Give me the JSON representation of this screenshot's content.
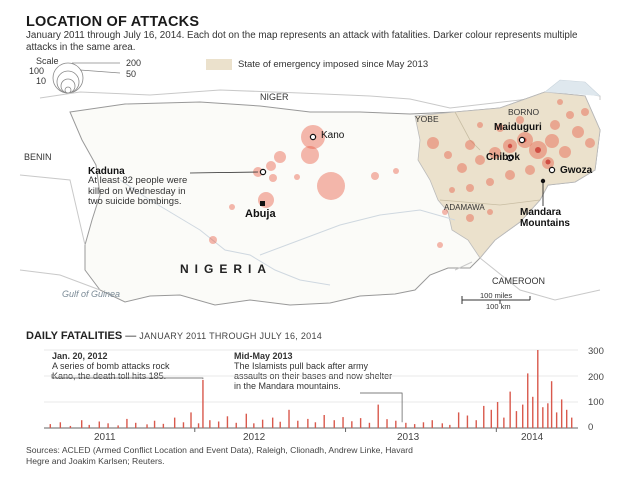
{
  "header": {
    "title": "LOCATION OF ATTACKS",
    "subtitle": "January 2011 through July 16, 2014. Each dot on the map represents an attack with fatalities. Darker colour represents multiple attacks in the same area."
  },
  "legend": {
    "scale_label": "Scale",
    "scale_values": [
      "200",
      "100",
      "50",
      "10"
    ],
    "state_of_emergency": "State of emergency imposed since May 2013"
  },
  "map": {
    "countries": {
      "niger": "NIGER",
      "benin": "BENIN",
      "cameroon": "CAMEROON",
      "nigeria": "NIGERIA",
      "gulf": "Gulf of Guinea"
    },
    "states": {
      "yobe": "YOBE",
      "borno": "BORNO",
      "adamawa": "ADAMAWA"
    },
    "cities": {
      "kano": "Kano",
      "maiduguri": "Maiduguri",
      "chibok": "Chibok",
      "gwoza": "Gwoza",
      "abuja": "Abuja",
      "kaduna": "Kaduna",
      "mandara": "Mandara Mountains"
    },
    "kaduna_note": "At least 82 people were killed on Wednesday in two suicide bombings.",
    "scale_bar": {
      "miles": "100 miles",
      "km": "100 km"
    }
  },
  "chart_data": {
    "type": "bar",
    "title": "DAILY FATALITIES",
    "subtitle": "JANUARY 2011 THROUGH JULY 16, 2014",
    "x_ticks": [
      "2011",
      "2012",
      "2013",
      "2014"
    ],
    "y_ticks": [
      "300",
      "200",
      "100",
      "0"
    ],
    "ylim": [
      0,
      300
    ],
    "x_range_months": [
      0,
      42.5
    ],
    "annotations": [
      {
        "date_label": "Jan. 20, 2012",
        "text": "A series of bomb attacks rock Kano, the death toll hits 185.",
        "month": 12.65,
        "value": 185
      },
      {
        "date_label": "Mid-May 2013",
        "text": "The Islamists pull back after army assaults on their bases and now shelter in the Mandara mountains.",
        "month": 28.5,
        "value": 30
      }
    ],
    "series": [
      {
        "name": "Daily fatalities",
        "month": [
          0.5,
          1.3,
          2.1,
          3.0,
          3.6,
          4.4,
          5.1,
          5.9,
          6.6,
          7.3,
          8.2,
          8.8,
          9.5,
          10.4,
          11.1,
          11.7,
          12.3,
          12.65,
          13.2,
          13.9,
          14.6,
          15.3,
          16.1,
          16.7,
          17.4,
          18.2,
          18.8,
          19.5,
          20.2,
          21.0,
          21.6,
          22.3,
          23.1,
          23.8,
          24.5,
          25.2,
          25.9,
          26.6,
          27.3,
          28.0,
          28.8,
          29.5,
          30.2,
          30.9,
          31.7,
          32.3,
          33.0,
          33.7,
          34.4,
          35.0,
          35.6,
          36.1,
          36.6,
          37.1,
          37.6,
          38.1,
          38.5,
          38.9,
          39.3,
          39.7,
          40.1,
          40.4,
          40.8,
          41.2,
          41.6,
          42.0
        ],
        "value": [
          15,
          22,
          8,
          30,
          12,
          25,
          18,
          10,
          35,
          20,
          14,
          28,
          16,
          40,
          22,
          60,
          18,
          185,
          30,
          25,
          45,
          20,
          55,
          18,
          32,
          40,
          24,
          70,
          28,
          35,
          22,
          50,
          30,
          42,
          26,
          38,
          20,
          90,
          34,
          28,
          20,
          15,
          22,
          30,
          18,
          12,
          60,
          48,
          30,
          85,
          70,
          100,
          40,
          140,
          65,
          90,
          210,
          120,
          300,
          80,
          95,
          180,
          60,
          110,
          70,
          40
        ]
      }
    ]
  },
  "sources": "Sources: ACLED (Armed Conflict Location and Event Data), Raleigh, Clionadh, Andrew Linke, Havard Hegre and Joakim Karlsen; Reuters."
}
